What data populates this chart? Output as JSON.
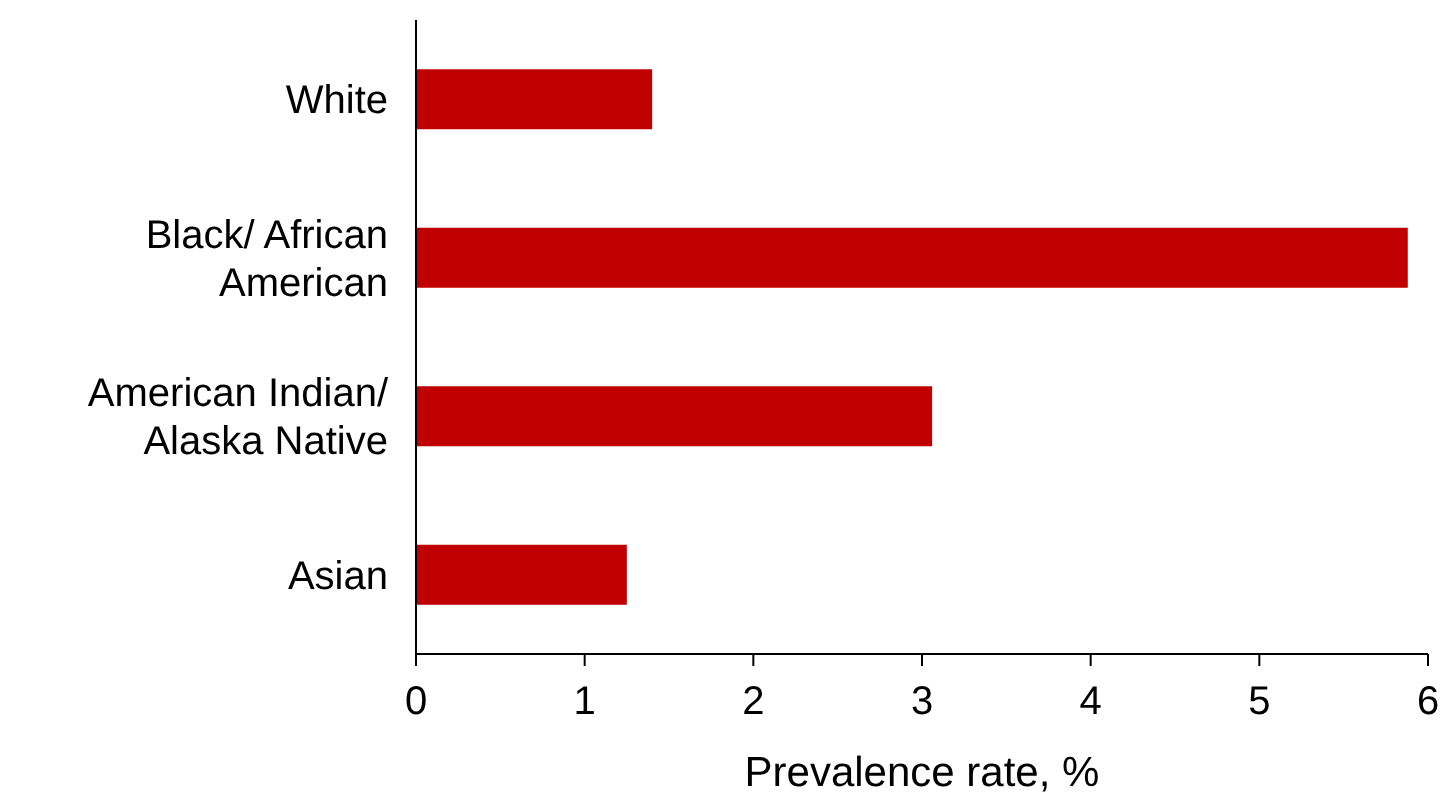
{
  "chart_data": {
    "type": "bar",
    "orientation": "horizontal",
    "xlabel": "Prevalence rate, %",
    "categories": [
      "White",
      "Black/ African American",
      "American Indian/ Alaska Native",
      "Asian"
    ],
    "values": [
      1.4,
      5.88,
      3.06,
      1.25
    ],
    "color": "#c00000",
    "xlim": [
      0,
      6
    ],
    "xticks": [
      0,
      1,
      2,
      3,
      4,
      5,
      6
    ]
  }
}
